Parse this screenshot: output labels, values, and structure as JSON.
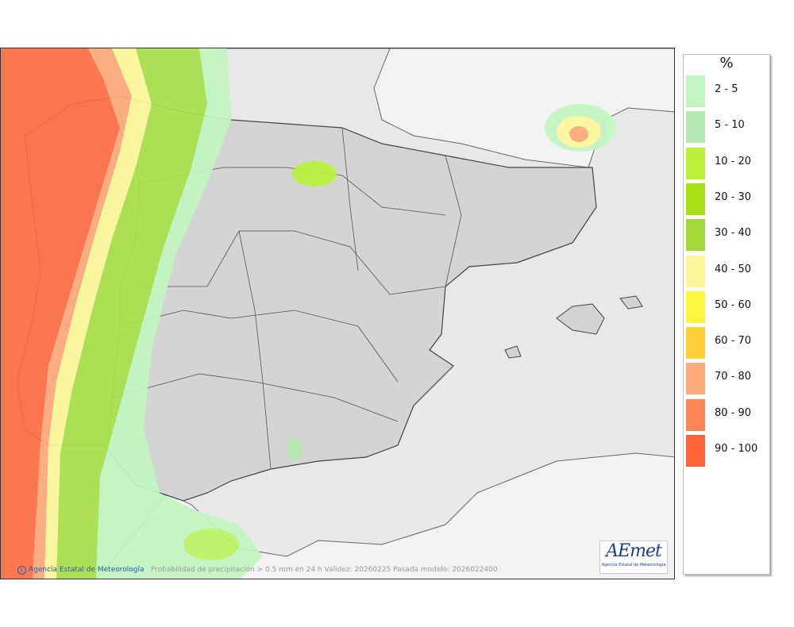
{
  "legend": {
    "title": "%",
    "items": [
      {
        "label": "2 - 5",
        "color": "#c2f5c2"
      },
      {
        "label": "5 - 10",
        "color": "#b5e8b2"
      },
      {
        "label": "10 - 20",
        "color": "#baf23a"
      },
      {
        "label": "20 - 30",
        "color": "#a8e015"
      },
      {
        "label": "30 - 40",
        "color": "#a2d83a"
      },
      {
        "label": "40 - 50",
        "color": "#fdf89a"
      },
      {
        "label": "50 - 60",
        "color": "#fbf53e"
      },
      {
        "label": "60 - 70",
        "color": "#fdd03a"
      },
      {
        "label": "70 - 80",
        "color": "#fdaa7a"
      },
      {
        "label": "80 - 90",
        "color": "#fd8555"
      },
      {
        "label": "90 - 100",
        "color": "#fd6536"
      }
    ]
  },
  "map": {
    "credit": "Agencia Estatal de Meteorología",
    "caption": "Probabilidad de precipitación > 0.5 mm en 24 h Validez: 20260225 Pasada modelo: 2026022400",
    "logo": "AEmet",
    "logo_subtitle": "Agencia Estatal de Meteorología",
    "land_color": "#d4d4d4",
    "sea_color": "#e8e8e8"
  }
}
